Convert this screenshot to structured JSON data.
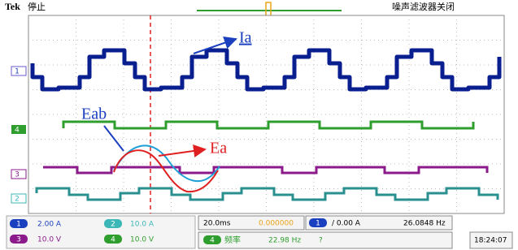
{
  "header": {
    "brand": "Tek",
    "status": "停止",
    "filter": "噪声滤波器关闭"
  },
  "annotations": {
    "ia": "Ia",
    "eab": "Eab",
    "ea": "Ea"
  },
  "channel_markers": [
    "1",
    "4",
    "3",
    "2"
  ],
  "readouts": {
    "ch1_badge": "1",
    "ch1_scale": "2.00 A",
    "ch2_badge": "2",
    "ch2_scale": "10.0 A",
    "ch3_badge": "3",
    "ch3_scale": "10.0 V",
    "ch4_badge": "4",
    "ch4_scale": "10.0 V",
    "timebase": "20.0ms",
    "trigger_position": "0.000000",
    "trigger_badge": "1",
    "trigger_level": "/ 0.00 A",
    "trigger_freq": "26.0848 Hz",
    "measure_badge": "4",
    "measure_label": "频率",
    "measure_value": "22.98 Hz",
    "measure_status": "?",
    "time": "18:24:07"
  }
}
